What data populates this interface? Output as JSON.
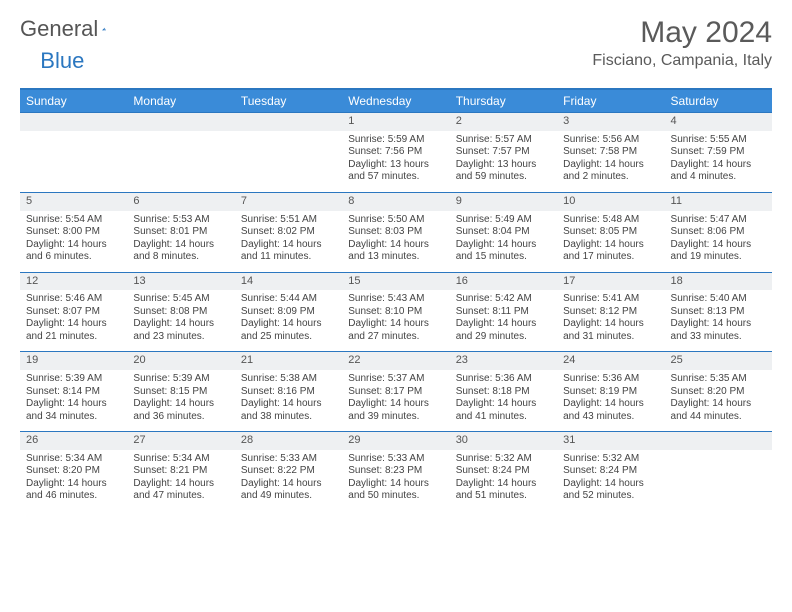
{
  "brand": {
    "word1": "General",
    "word2": "Blue"
  },
  "header": {
    "title": "May 2024",
    "location": "Fisciano, Campania, Italy"
  },
  "colors": {
    "accent": "#3a8bd8",
    "accent_border": "#2b77c0",
    "daynum_bg": "#eef0f2",
    "text": "#444444",
    "header_text": "#5a5a5a",
    "white": "#ffffff"
  },
  "dow": [
    "Sunday",
    "Monday",
    "Tuesday",
    "Wednesday",
    "Thursday",
    "Friday",
    "Saturday"
  ],
  "weeks": [
    [
      null,
      null,
      null,
      {
        "n": "1",
        "sr": "Sunrise: 5:59 AM",
        "ss": "Sunset: 7:56 PM",
        "dl": "Daylight: 13 hours and 57 minutes."
      },
      {
        "n": "2",
        "sr": "Sunrise: 5:57 AM",
        "ss": "Sunset: 7:57 PM",
        "dl": "Daylight: 13 hours and 59 minutes."
      },
      {
        "n": "3",
        "sr": "Sunrise: 5:56 AM",
        "ss": "Sunset: 7:58 PM",
        "dl": "Daylight: 14 hours and 2 minutes."
      },
      {
        "n": "4",
        "sr": "Sunrise: 5:55 AM",
        "ss": "Sunset: 7:59 PM",
        "dl": "Daylight: 14 hours and 4 minutes."
      }
    ],
    [
      {
        "n": "5",
        "sr": "Sunrise: 5:54 AM",
        "ss": "Sunset: 8:00 PM",
        "dl": "Daylight: 14 hours and 6 minutes."
      },
      {
        "n": "6",
        "sr": "Sunrise: 5:53 AM",
        "ss": "Sunset: 8:01 PM",
        "dl": "Daylight: 14 hours and 8 minutes."
      },
      {
        "n": "7",
        "sr": "Sunrise: 5:51 AM",
        "ss": "Sunset: 8:02 PM",
        "dl": "Daylight: 14 hours and 11 minutes."
      },
      {
        "n": "8",
        "sr": "Sunrise: 5:50 AM",
        "ss": "Sunset: 8:03 PM",
        "dl": "Daylight: 14 hours and 13 minutes."
      },
      {
        "n": "9",
        "sr": "Sunrise: 5:49 AM",
        "ss": "Sunset: 8:04 PM",
        "dl": "Daylight: 14 hours and 15 minutes."
      },
      {
        "n": "10",
        "sr": "Sunrise: 5:48 AM",
        "ss": "Sunset: 8:05 PM",
        "dl": "Daylight: 14 hours and 17 minutes."
      },
      {
        "n": "11",
        "sr": "Sunrise: 5:47 AM",
        "ss": "Sunset: 8:06 PM",
        "dl": "Daylight: 14 hours and 19 minutes."
      }
    ],
    [
      {
        "n": "12",
        "sr": "Sunrise: 5:46 AM",
        "ss": "Sunset: 8:07 PM",
        "dl": "Daylight: 14 hours and 21 minutes."
      },
      {
        "n": "13",
        "sr": "Sunrise: 5:45 AM",
        "ss": "Sunset: 8:08 PM",
        "dl": "Daylight: 14 hours and 23 minutes."
      },
      {
        "n": "14",
        "sr": "Sunrise: 5:44 AM",
        "ss": "Sunset: 8:09 PM",
        "dl": "Daylight: 14 hours and 25 minutes."
      },
      {
        "n": "15",
        "sr": "Sunrise: 5:43 AM",
        "ss": "Sunset: 8:10 PM",
        "dl": "Daylight: 14 hours and 27 minutes."
      },
      {
        "n": "16",
        "sr": "Sunrise: 5:42 AM",
        "ss": "Sunset: 8:11 PM",
        "dl": "Daylight: 14 hours and 29 minutes."
      },
      {
        "n": "17",
        "sr": "Sunrise: 5:41 AM",
        "ss": "Sunset: 8:12 PM",
        "dl": "Daylight: 14 hours and 31 minutes."
      },
      {
        "n": "18",
        "sr": "Sunrise: 5:40 AM",
        "ss": "Sunset: 8:13 PM",
        "dl": "Daylight: 14 hours and 33 minutes."
      }
    ],
    [
      {
        "n": "19",
        "sr": "Sunrise: 5:39 AM",
        "ss": "Sunset: 8:14 PM",
        "dl": "Daylight: 14 hours and 34 minutes."
      },
      {
        "n": "20",
        "sr": "Sunrise: 5:39 AM",
        "ss": "Sunset: 8:15 PM",
        "dl": "Daylight: 14 hours and 36 minutes."
      },
      {
        "n": "21",
        "sr": "Sunrise: 5:38 AM",
        "ss": "Sunset: 8:16 PM",
        "dl": "Daylight: 14 hours and 38 minutes."
      },
      {
        "n": "22",
        "sr": "Sunrise: 5:37 AM",
        "ss": "Sunset: 8:17 PM",
        "dl": "Daylight: 14 hours and 39 minutes."
      },
      {
        "n": "23",
        "sr": "Sunrise: 5:36 AM",
        "ss": "Sunset: 8:18 PM",
        "dl": "Daylight: 14 hours and 41 minutes."
      },
      {
        "n": "24",
        "sr": "Sunrise: 5:36 AM",
        "ss": "Sunset: 8:19 PM",
        "dl": "Daylight: 14 hours and 43 minutes."
      },
      {
        "n": "25",
        "sr": "Sunrise: 5:35 AM",
        "ss": "Sunset: 8:20 PM",
        "dl": "Daylight: 14 hours and 44 minutes."
      }
    ],
    [
      {
        "n": "26",
        "sr": "Sunrise: 5:34 AM",
        "ss": "Sunset: 8:20 PM",
        "dl": "Daylight: 14 hours and 46 minutes."
      },
      {
        "n": "27",
        "sr": "Sunrise: 5:34 AM",
        "ss": "Sunset: 8:21 PM",
        "dl": "Daylight: 14 hours and 47 minutes."
      },
      {
        "n": "28",
        "sr": "Sunrise: 5:33 AM",
        "ss": "Sunset: 8:22 PM",
        "dl": "Daylight: 14 hours and 49 minutes."
      },
      {
        "n": "29",
        "sr": "Sunrise: 5:33 AM",
        "ss": "Sunset: 8:23 PM",
        "dl": "Daylight: 14 hours and 50 minutes."
      },
      {
        "n": "30",
        "sr": "Sunrise: 5:32 AM",
        "ss": "Sunset: 8:24 PM",
        "dl": "Daylight: 14 hours and 51 minutes."
      },
      {
        "n": "31",
        "sr": "Sunrise: 5:32 AM",
        "ss": "Sunset: 8:24 PM",
        "dl": "Daylight: 14 hours and 52 minutes."
      },
      null
    ]
  ]
}
